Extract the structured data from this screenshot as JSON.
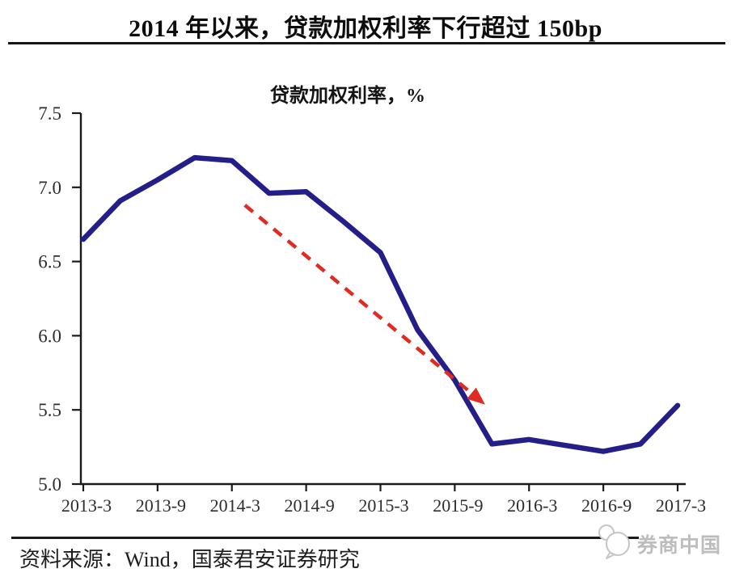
{
  "header": {
    "title": "2014 年以来，贷款加权利率下行超过 150bp"
  },
  "footer": {
    "source_note": "资料来源：Wind，国泰君安证券研究",
    "logo_text": "券商中国"
  },
  "colors": {
    "line": "#241f88",
    "arrow": "#e02a22",
    "axis": "#1a1a1a",
    "tick_label": "#2d2d2d",
    "logo_gray": "#bdbdbd"
  },
  "chart_data": {
    "type": "line",
    "title": "贷款加权利率，%",
    "xlabel": "",
    "ylabel": "",
    "ylim": [
      5.0,
      7.5
    ],
    "grid": false,
    "legend_position": "none",
    "categories": [
      "2013-3",
      "2013-6",
      "2013-9",
      "2013-12",
      "2014-3",
      "2014-6",
      "2014-9",
      "2014-12",
      "2015-3",
      "2015-6",
      "2015-9",
      "2015-12",
      "2016-3",
      "2016-6",
      "2016-9",
      "2016-12",
      "2017-3"
    ],
    "series": [
      {
        "name": "贷款加权利率",
        "color": "#241f88",
        "values": [
          6.65,
          6.91,
          7.05,
          7.2,
          7.18,
          6.96,
          6.97,
          6.77,
          6.56,
          6.04,
          5.7,
          5.27,
          5.3,
          5.26,
          5.22,
          5.27,
          5.53
        ]
      }
    ],
    "x_tick_labels": [
      "2013-3",
      "2013-9",
      "2014-3",
      "2014-9",
      "2015-3",
      "2015-9",
      "2016-3",
      "2016-9",
      "2017-3"
    ],
    "y_tick_labels": [
      "7.5",
      "7.0",
      "6.5",
      "6.0",
      "5.5",
      "5.0"
    ],
    "annotations": [
      {
        "type": "arrow",
        "style": "dashed",
        "color": "#e02a22",
        "from": {
          "x_index": 4.35,
          "value": 6.88
        },
        "to": {
          "x_index": 10.75,
          "value": 5.55
        }
      }
    ]
  }
}
